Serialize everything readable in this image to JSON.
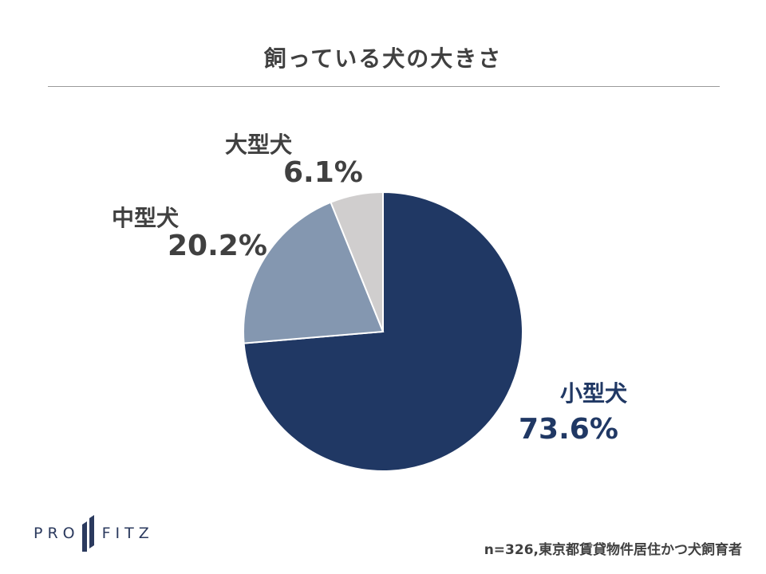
{
  "chart_data": {
    "type": "pie",
    "title": "飼っている犬の大きさ",
    "slices": [
      {
        "name": "小型犬",
        "value": 73.6,
        "label": "73.6%",
        "color": "#203864"
      },
      {
        "name": "中型犬",
        "value": 20.2,
        "label": "20.2%",
        "color": "#8497b0"
      },
      {
        "name": "大型犬",
        "value": 6.1,
        "label": "6.1%",
        "color": "#d0cece"
      }
    ],
    "start_angle": "12 o'clock",
    "direction": "clockwise"
  },
  "footnote": "n=326,東京都賃貸物件居住かつ犬飼育者",
  "logo": {
    "left_text": "PRO",
    "right_text": "FITZ",
    "color": "#2b3a5e"
  }
}
